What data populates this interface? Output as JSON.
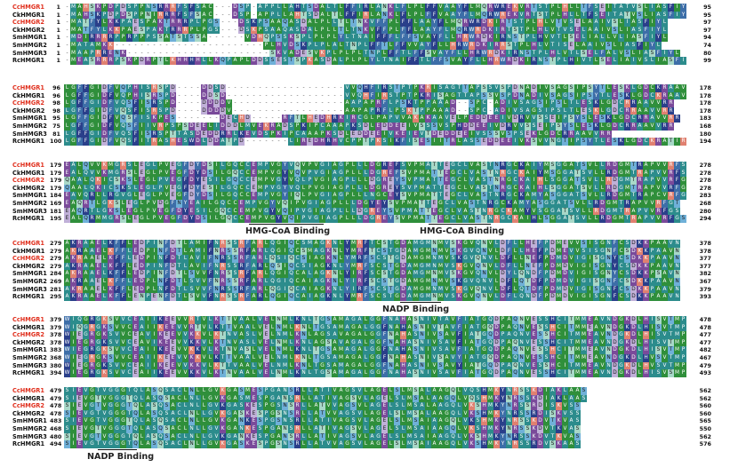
{
  "palette": {
    "green": "#2f8f3b",
    "teal": "#2c8c8c",
    "steelblue": "#3d6ea8",
    "purple": "#7a4a9a",
    "darkblue": "#2a3f8a",
    "mint": "#a8d8c8",
    "lavender": "#c0b0d8",
    "salmon": "#e08070",
    "sky": "#6fb0d8",
    "white": "#ffffff",
    "red_name": "#e0301e"
  },
  "blocks": [
    {
      "rows": [
        {
          "name": "CcHMGR1",
          "red": true,
          "start": "1",
          "end": "95",
          "seq": "-MAHSKPDPDSPPNSRRRFSFSAC---DSP-APPLLAHTSDALTLFFIRLANKLFLPLFFVAAYFLMQRWREKVRTSTPLHLLTFSEITATVSLIASFIYL"
        },
        {
          "name": "CkHMGR1",
          "red": false,
          "start": "1",
          "end": "95",
          "seq": "-MAHSKPDPDSPPNIRRRFSFSAC---DSP-APPLLAHTSDALTLFFIRLANKLFLPLFFVAAYFLMQRWREKVRTSTPLHLLTFSEITATVSLIASFIYL"
        },
        {
          "name": "CcHMGR2",
          "red": true,
          "start": "1",
          "end": "97",
          "seq": "-MATFYLKKPAESPAKTRRRPLPGS---DSKPSAAQASDALPLLTLTNKVFFPLFFLAAYFLMQRWRDKIRTSTPLHLVTVSELAAIVSLIASFIYL"
        },
        {
          "name": "CkHMGR2",
          "red": false,
          "start": "1",
          "end": "97",
          "seq": "-MATFYLKKPAESPAKTRRRPLPGS---DSKPSAAQASDALPLLTLTNKVFFPLFFLAAYFLMQRWRDKIRTSTPLHLVTVSELAAIVSLIASFIYL"
        },
        {
          "name": "SmHMGR1",
          "red": false,
          "start": "1",
          "end": "94",
          "seq": "-MDIRRRRPPRPPPSSATSTSSA------VDHQPSSKSPLPLPLYLTNAIFFFLFFSVAYFLLHRWRDKIRNSTPLHVVTLSELIALLVLIASFIYL"
        },
        {
          "name": "SmHMGR2",
          "red": false,
          "start": "1",
          "end": "74",
          "seq": "-MATAMKK------------------------PLHVDSKPLPLALTNPLFFTLFFVVAYFLLHRWRDKIRRSTPLHLVTISELAAIVSLIASFIYL"
        },
        {
          "name": "SmHMGR3",
          "red": false,
          "start": "1",
          "end": "80",
          "seq": "-MAAPRRENK-----------------------SKVADESVKPLPLPLTNPLFFTLFFSVAYFLLHRWRDKIRNSTPLHLVTLSELFALVSLIASFIYL"
        },
        {
          "name": "RcHMGR1",
          "red": false,
          "start": "1",
          "end": "99",
          "seq": "-MEASRRRPSKPDRPTLKHHHHLLKQPAPLDDSSESTSPKASDALPLPLYLTNAIFFTLFFSVAYFLLHRWRDKIRNSTPLHIVTLSELIAIVSLIASFIYL"
        }
      ]
    },
    {
      "rows": [
        {
          "name": "CcHMGR1",
          "red": true,
          "start": "96",
          "end": "178",
          "seq": "LGFFGIDFVQPHISRSPD----DDSD-------------------VVQHFIRSTPTPKRISAGTTAPSSVSPDNADIVSAGSIPSYTLESKLGDCKRAAVVRR"
        },
        {
          "name": "CkHMGR1",
          "red": false,
          "start": "96",
          "end": "178",
          "seq": "LGFFGIDFVQPHISRSPD----DDSD-------------------VVQHFIRSTPTPKRISAGTTAPSSVSPDNADIVSAGSIPSYTLESKLGDCKRAAVVRR"
        },
        {
          "name": "CcHMGR2",
          "red": true,
          "start": "98",
          "end": "178",
          "seq": "LGFFGIDFVQSFISRSPD----DDDDV------------------AAPAPRFLPSKTPPAAAD--SPC-ADIVSAGSIPSLTLESKLGDCRRAAVVRR"
        },
        {
          "name": "CkHMGR2",
          "red": false,
          "start": "98",
          "end": "178",
          "seq": "LGFFGIDFVQSFISRSPD----DDDDV------------------AAPAPRFLPSKTPPAAAD--SPC-ADIVSAGSIPSLTLESKLGDCRRAAVVRR"
        },
        {
          "name": "SmHMGR1",
          "red": false,
          "start": "95",
          "end": "183",
          "seq": "LGFFGIDFVQSFISKPES-------DECHD-----RFTLHEDHRKIRCGLPAPVVAKAKAAVELPEDDEEIVDRVVSSEIPSYSLESKLGDCRRAVVRR"
        },
        {
          "name": "SmHMGR2",
          "red": false,
          "start": "75",
          "end": "168",
          "seq": "LGFFGIDFVQSFIIVRPSPSDEELIDDDLMVEKRADSPKIPCAAAPKSDLEDDEEIVSSSVSPHDDEEIVDRVVSSEIPSYSLESKLGDCRRAAVVRR"
        },
        {
          "name": "SmHMGR3",
          "red": false,
          "start": "81",
          "end": "180",
          "seq": "LGFFGIDFVQSFISRSPTTASDEDDRRLKEVDSPKIPCAAAPKSDLEDDEEIVKEIEVTDEDDEEIVSSSVSPSEKLGDCRRAAVVRR"
        },
        {
          "name": "RcHMGR1",
          "red": false,
          "start": "100",
          "end": "194",
          "seq": "LGFFGIDFVQSFITRASHESWDLDDATPD-------LIREDHRHVCPPTPKSIKFISESIITRLASSEDDEEIVKSVVNGTIPSYTLESKLGDCKRATIRR"
        }
      ]
    },
    {
      "rows": [
        {
          "name": "CcHMGR1",
          "red": true,
          "start": "179",
          "end": "278",
          "seq": "EALQVVKMGRSLEGLPVEGFDYDSILGQCCEMPVGYVQVPVGIAGPLLLDGREFSVPMATTEGCLVASTNRGCKAIYMSGGATSVLLRDGMTRAPVVRFSS"
        },
        {
          "name": "CkHMGR1",
          "red": false,
          "start": "179",
          "end": "278",
          "seq": "EALQVVKMGRSLEGLPVEGFDYDSILGQCCEMPVGYVQVPVGIAGPLLLDGREFSVPMATTEGCLVASTNRGCKAIYMSGGATSVLLRDGMTRAPVVRFSS"
        },
        {
          "name": "CcHMGR2",
          "red": true,
          "start": "179",
          "end": "278",
          "seq": "QAALQKICSKSLEGLPVEGFDYESILGQCCEMPVGYVQLPVGIAGPLLLDGREYSVPMATTEGCLVASTNRGCKAIHLSGGATSVLLRDGMTRAPVVRFGT"
        },
        {
          "name": "CkHMGR2",
          "red": false,
          "start": "179",
          "end": "278",
          "seq": "QAALQKICSKSLEGLPVEGFDYESILGQCCEMPVGYVQLPVGIAGPLLLDGREYSVPMATTEGCLVASTNRGCKAIHLSGGATSVLLRDGMTRAPVVRFGT"
        },
        {
          "name": "SmHMGR1",
          "red": false,
          "start": "184",
          "end": "283",
          "seq": "EAVQRLLRGVGLEGLPVEGFDYDSILGQCCEMPVGYIQLPVGIAGPLLLNGCEYSVPMATTEGCLVASTNRGCKAMYASGGATSVLLRDGMTRAPCVRFGS"
        },
        {
          "name": "SmHMGR2",
          "red": false,
          "start": "169",
          "end": "268",
          "seq": "EAQRTLGKSLEGLPVDGFNYEAILGQCCEMPVGYVQIPVGIAGPLLLDGYEYSVPMATTEGCLVASTNRGCKAMYASGGATSVLLRDGMTRAPVVRFGT"
        },
        {
          "name": "SmHMGR3",
          "red": false,
          "start": "181",
          "end": "280",
          "seq": "EAQRTLGKSLEGLPVEGFDYESILGQCCEMPVGYVQIPVGIAGPLLLDGREYSVPMATTEGCLVASTNRGCKAMYVSGGATSVLLRDGMTRAPVVRFGS"
        },
        {
          "name": "RcHMGR1",
          "red": false,
          "start": "195",
          "end": "294",
          "seq": "EALQRMMGRSLEGLPVEGFDYDSILGQCCEMPVGYVQIPVGIAGPLLLDGREYSVPMATTEGCLVASTNRGCKAIHLSGGATSVLLRDGMTRAPVVRFGS"
        }
      ],
      "annotations": [
        {
          "label": "HMG-CoA Binding"
        },
        {
          "label": "HMG-CoA Binding"
        }
      ]
    },
    {
      "rows": [
        {
          "name": "CcHMGR1",
          "red": true,
          "start": "279",
          "end": "378",
          "seq": "AKRAAELKFFLEDPINFDTLAMIFNRSSRFARLQGIQCSMAGKNLYMRFTCSTGDAMGMNMVSKGVQNVLDFLLHEFPDMEVVSISGNFCSDKKPAAVN"
        },
        {
          "name": "CkHMGR1",
          "red": false,
          "start": "279",
          "end": "378",
          "seq": "AKRAAELKFFLEDPINFDTLAMIFNRSSRFARLQGIQCSMAGKNLYMRFTCSTGDAMGMNMVSKGVQNVLDFLLHEFPDMEVVSISGNFCSDKKPAAVN"
        },
        {
          "name": "CcHMGR2",
          "red": true,
          "start": "279",
          "end": "377",
          "seq": "AKRAAELKFFLEDPINFDTLAVIFNRSSRFARLQSIQCSIAGKNLYMRFSCSTGDAMGMNMVSKGVQNVLDFLLNEFPDMDVIGISGNYCSDKKPAAVN"
        },
        {
          "name": "CkHMGR2",
          "red": false,
          "start": "279",
          "end": "377",
          "seq": "AKRAAELKFFLEDPINFDTLAVIFNRSSRFARLQSIQCSIAGKNLYMRFSCSTGDAMGMNMVSKGVQNVLDFLLNEFPDMDVIGISGNYCSDKKPAAVN"
        },
        {
          "name": "SmHMGR1",
          "red": false,
          "start": "284",
          "end": "382",
          "seq": "AKRAAELKFFLEDPINFDTLSVVFNRSSRFARLQGIQCALAGKNLYIRFSCSTGDAMGMNMVSKGVQNVLDYLQNDFPDMDVIGISGNYCSDKKPSAVN"
        },
        {
          "name": "SmHMGR2",
          "red": false,
          "start": "269",
          "end": "367",
          "seq": "AKRAAELKFFLEDPLNFDTLSVVFNRSSRFARLQGIQCAIAGKNLYIRFSCSTGDAMGMNMVSKGVQNVLDFLQTDFPDMDVIGISGNFCSDKKPAAVN"
        },
        {
          "name": "SmHMGR3",
          "red": false,
          "start": "281",
          "end": "379",
          "seq": "AKRAAELKFFLEDPLNFDTLSVVFNRSSRFARLQGIQCAIAGKNLYIRFSCSTGDAMGMNMVSKGVQNVLDFLQTDFPDMDVIGISGNFCSDKKPAAVN"
        },
        {
          "name": "RcHMGR1",
          "red": false,
          "start": "295",
          "end": "393",
          "seq": "AKRAAELKFFLENPENFDTLSVVFNRSSRFARLQGIQCAIAGKNLYMRFSCSTGDAMGMNMVSKGVQNVLDFLQNDFPDMDVIGISGNFCSDKKPAAVN"
        }
      ],
      "annotations": [
        {
          "label": "NADP Binding"
        }
      ]
    },
    {
      "rows": [
        {
          "name": "CcHMGR1",
          "red": true,
          "start": "379",
          "end": "478",
          "seq": "WIQGRGKSVVCEAIIKEEVVRTVLKTTVAALVELNMLKNLTGSAMAGALGGFNAHASNIVTAVFIATGQDPAQNVESSHCITMMEAVNDGKDLHISVTMP"
        },
        {
          "name": "CkHMGR1",
          "red": false,
          "start": "379",
          "end": "478",
          "seq": "WIQGRGKSVVCEAIIKEEVVRTVLKTTVAALVELNMLKNLTGSAMAGALGGFNAHASNIVTAVFIATGQDPAQNVESSHCITMMEAVNDGKDLHISVTMP"
        },
        {
          "name": "CcHMGR2",
          "red": true,
          "start": "378",
          "end": "477",
          "seq": "WIEGRGKSVVCEAVIKEEVVKKVLKTNVASLVELNMLKNLAGSAVAGALGGFNAHASNIVSAVFIATGQDPAQNVESSHCITMMEAVNDGKDLHISVTMP"
        },
        {
          "name": "CkHMGR2",
          "red": false,
          "start": "378",
          "end": "477",
          "seq": "WIEGRGKSVVCEAVIKEEVVKKVLKTNVASLVELNMLKNLAGSAVAGALGGFNAHASNIVSAVFIATGQDPAQNVESSHCITMMEAVNDGKDLHISVTMP"
        },
        {
          "name": "SmHMGR1",
          "red": false,
          "start": "383",
          "end": "482",
          "seq": "WIEGRGKSVVCEAIIKEEVVKKVLKTNVASLVELNMLKNLTGSAMAGALGGFNAHASNIVSAVFIATGQDPAQNVESSHCITMMEAVNDGKDLHISVTMP"
        },
        {
          "name": "SmHMGR2",
          "red": false,
          "start": "368",
          "end": "467",
          "seq": "WIEGRGKSVVCEAIIKEEVVKKVLKTTVAALVELNMLKNLTGSAMAGALGGFNAHASNIVSAVYIATGQDPAQNVESSHCITMMEAVNDGKDLHVSVTMP"
        },
        {
          "name": "SmHMGR3",
          "red": false,
          "start": "380",
          "end": "479",
          "seq": "WIEGRGKSVVCEAIIKEEVVKKVLKTTVAALVELNMLKNLTGSAMAGALGGFNAHASNIVSAVYIATGQDPAQNVESSHCITMMEAVNDGKDLHVSVTMP"
        },
        {
          "name": "RcHMGR1",
          "red": false,
          "start": "394",
          "end": "493",
          "seq": "WIEGRGKSVVCEAIIKEEVVKKVLKTNVAALVELNMLKNLTGSAMAGALGGFNAHASNIVSAVFIATGQDPAQNVESSHCITMMEAVNDGKDLHISVSMP"
        }
      ]
    },
    {
      "rows": [
        {
          "name": "CcHMGR1",
          "red": true,
          "start": "479",
          "end": "562",
          "seq": "SIEVGTVGGGTQLASQSACLNLLGVKGASMESPGANSRLLATIVAGSVLAGELSLMSALAAGQLVQSHMKYNRSSKDIAKLAAS"
        },
        {
          "name": "CkHMGR1",
          "red": false,
          "start": "479",
          "end": "562",
          "seq": "SIEVGTVGGGTQLASQSACLNLLGVKGASMESPGANSRLLATIVAGSVLAGELSLMSALAAGQLVQSHMKYNRSSKDIAKLAAS"
        },
        {
          "name": "CcHMGR2",
          "red": true,
          "start": "478",
          "end": "560",
          "seq": "SIEVGTVGGGTQLASQSACLNLLGVKGASKESPGSNSRLLATVVAGSVLAGELSLMSALAAGQLVKSHMKYNRSSRDISKVSS"
        },
        {
          "name": "CkHMGR2",
          "red": false,
          "start": "478",
          "end": "560",
          "seq": "SIEVGTVGGGTQLASQSACLNLLGVKGASKESPGSNSRLLATVVAGSVLAGELSLMSALAAGQLVKSHMKYNRSSRDISKVSS"
        },
        {
          "name": "SmHMGR1",
          "red": false,
          "start": "483",
          "end": "565",
          "seq": "SIEVGTVGGGTQLASQSACLNLLGVKGANKESPGSNSRLLATIVAGSVLAGELSLMSAIAAGQLVKSHMKYNRSSKDVTKVAS"
        },
        {
          "name": "SmHMGR2",
          "red": false,
          "start": "468",
          "end": "550",
          "seq": "SIEVGTVGGGTQLASQSACLNLLGVKGANKESPGANSRLLATIVAGSVLAGELSLMSAIAAGQLVKSHMKYNRSSKDVTKVAS"
        },
        {
          "name": "SmHMGR3",
          "red": false,
          "start": "480",
          "end": "562",
          "seq": "SIEVGTVGGGTQLASQSACLNLLGVKGANKESPGANSRLLATIVAGSVLAGELSLMSAIAAGQLVKSHMKYNRSSKDVTKVAS"
        },
        {
          "name": "RcHMGR1",
          "red": false,
          "start": "494",
          "end": "576",
          "seq": "SIEVGTVGGGTQLASQSACLNLLGVKGASKESPGSNSRLLATVVAGSVLAGELSLMSAIAAGQLVKSHMKYNRSSRDVSKAAS"
        }
      ],
      "annotations": [
        {
          "label": "NADP Binding"
        }
      ]
    }
  ]
}
